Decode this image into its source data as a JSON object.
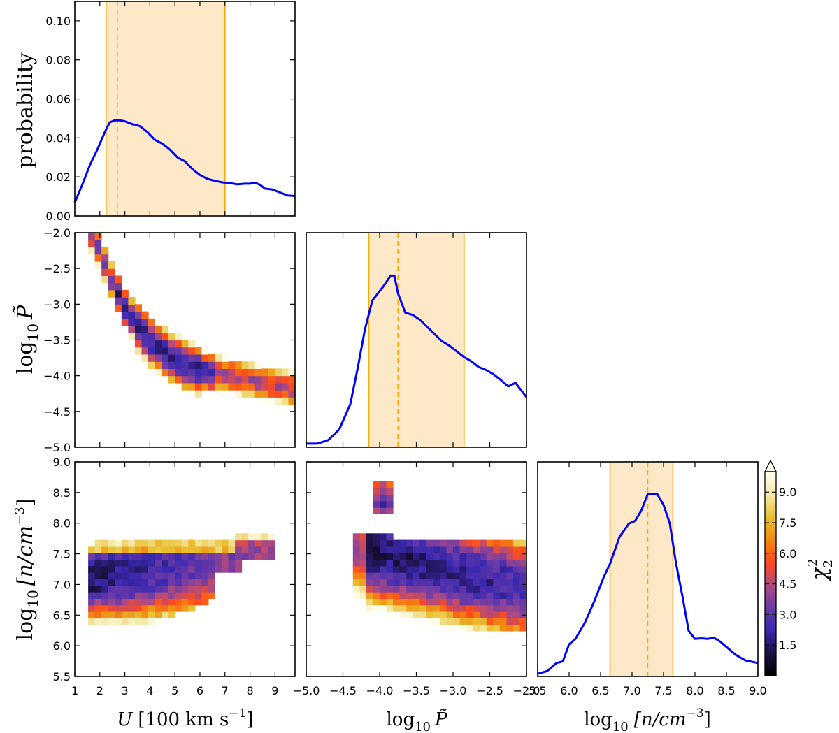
{
  "chart_data": [
    {
      "panel": "U marginal",
      "type": "line",
      "ylabel": "probability",
      "xlim": [
        1,
        9.8
      ],
      "ylim": [
        0,
        0.11
      ],
      "yticks": [
        "0.00",
        "0.02",
        "0.04",
        "0.06",
        "0.08",
        "0.10"
      ],
      "x": [
        1.0,
        1.3,
        1.6,
        1.9,
        2.2,
        2.4,
        2.6,
        2.8,
        3.0,
        3.3,
        3.6,
        3.9,
        4.2,
        4.5,
        4.8,
        5.1,
        5.4,
        5.7,
        6.0,
        6.3,
        6.6,
        6.9,
        7.2,
        7.5,
        7.8,
        8.0,
        8.2,
        8.4,
        8.6,
        8.9,
        9.2,
        9.5,
        9.8
      ],
      "y": [
        0.007,
        0.016,
        0.026,
        0.034,
        0.043,
        0.048,
        0.049,
        0.049,
        0.0485,
        0.047,
        0.046,
        0.043,
        0.039,
        0.037,
        0.034,
        0.03,
        0.028,
        0.024,
        0.021,
        0.019,
        0.018,
        0.0172,
        0.0168,
        0.0162,
        0.0165,
        0.0165,
        0.017,
        0.016,
        0.014,
        0.0135,
        0.012,
        0.0105,
        0.0102
      ],
      "interval": [
        2.25,
        7.0
      ],
      "peak": 2.7,
      "series_color": "#0000ff",
      "band_color": "#ffa500"
    },
    {
      "panel": "P marginal",
      "type": "line",
      "xlim": [
        -5,
        -2
      ],
      "x": [
        -5.0,
        -4.85,
        -4.7,
        -4.55,
        -4.4,
        -4.3,
        -4.2,
        -4.1,
        -3.95,
        -3.85,
        -3.8,
        -3.75,
        -3.65,
        -3.55,
        -3.45,
        -3.35,
        -3.25,
        -3.15,
        -3.05,
        -2.95,
        -2.85,
        -2.75,
        -2.65,
        -2.55,
        -2.45,
        -2.35,
        -2.25,
        -2.15,
        -2.0
      ],
      "y": [
        0.005,
        0.005,
        0.01,
        0.025,
        0.06,
        0.11,
        0.165,
        0.205,
        0.225,
        0.24,
        0.24,
        0.215,
        0.188,
        0.185,
        0.178,
        0.168,
        0.158,
        0.148,
        0.142,
        0.134,
        0.126,
        0.12,
        0.112,
        0.108,
        0.102,
        0.094,
        0.085,
        0.09,
        0.07
      ],
      "interval": [
        -4.15,
        -2.85
      ],
      "peak": -3.75,
      "series_color": "#0000ff",
      "band_color": "#ffa500"
    },
    {
      "panel": "n marginal",
      "type": "line",
      "xlim": [
        5.5,
        9.0
      ],
      "xticks": [
        "5.5",
        "6.0",
        "6.5",
        "7.0",
        "7.5",
        "8.0",
        "8.5",
        "9.0"
      ],
      "x": [
        5.5,
        5.65,
        5.8,
        5.9,
        6.0,
        6.1,
        6.25,
        6.4,
        6.55,
        6.65,
        6.8,
        6.95,
        7.05,
        7.15,
        7.25,
        7.4,
        7.5,
        7.6,
        7.7,
        7.8,
        7.9,
        8.0,
        8.1,
        8.2,
        8.3,
        8.4,
        8.5,
        8.65,
        8.8,
        9.0
      ],
      "y": [
        0.005,
        0.01,
        0.025,
        0.028,
        0.06,
        0.07,
        0.1,
        0.14,
        0.185,
        0.21,
        0.26,
        0.285,
        0.29,
        0.31,
        0.34,
        0.34,
        0.32,
        0.285,
        0.21,
        0.15,
        0.085,
        0.07,
        0.071,
        0.07,
        0.072,
        0.065,
        0.055,
        0.04,
        0.03,
        0.025
      ],
      "interval": [
        6.65,
        7.65
      ],
      "peak": 7.25,
      "series_color": "#0000ff",
      "band_color": "#ffa500"
    },
    {
      "panel": "U vs log P",
      "type": "heatmap",
      "ylabel_base": "log",
      "ylabel_sub": "10",
      "ylabel_sym": "P̃",
      "xlim": [
        1,
        9.8
      ],
      "ylim": [
        -5,
        -2
      ],
      "yticks": [
        "−5.0",
        "−4.5",
        "−4.0",
        "−3.5",
        "−3.0",
        "−2.5",
        "−2.0"
      ],
      "ridge_x": [
        1.6,
        2.0,
        2.5,
        3.0,
        3.5,
        4.0,
        4.5,
        5.0,
        5.5,
        6.0,
        6.5,
        7.0,
        7.5,
        8.0,
        8.5,
        9.0,
        9.5,
        9.8
      ],
      "ridge_y": [
        -1.95,
        -2.25,
        -2.7,
        -3.05,
        -3.3,
        -3.5,
        -3.65,
        -3.78,
        -3.86,
        -3.92,
        -3.95,
        -3.98,
        -4.02,
        -4.05,
        -4.1,
        -4.12,
        -4.15,
        -4.2
      ],
      "chi2_min": 0.5
    },
    {
      "panel": "U vs log n",
      "type": "heatmap",
      "ylabel_base": "log",
      "ylabel_sub": "10",
      "ylabel_sym": "[n/cm",
      "ylabel_sup": "−3",
      "ylabel_end": "]",
      "xlim": [
        1,
        9.8
      ],
      "ylim": [
        5.5,
        9.0
      ],
      "xticks": [
        "1",
        "2",
        "3",
        "4",
        "5",
        "6",
        "7",
        "8",
        "9"
      ],
      "yticks": [
        "5.5",
        "6.0",
        "6.5",
        "7.0",
        "7.5",
        "8.0",
        "8.5",
        "9.0"
      ],
      "xlabel_sym": "U",
      "xlabel_text": "[100 km s",
      "xlabel_sup": "−1",
      "xlabel_end": "]",
      "chi2_min": 0.3
    },
    {
      "panel": "log P vs log n",
      "type": "heatmap",
      "xlim": [
        -5,
        -2
      ],
      "ylim": [
        5.5,
        9.0
      ],
      "xticks": [
        "−5.0",
        "−4.5",
        "−4.0",
        "−3.5",
        "−3.0",
        "−2.5",
        "−2.0"
      ],
      "xlabel_base": "log",
      "xlabel_sub": "10",
      "xlabel_sym": "P̃",
      "n_xlabel_base": "log",
      "n_xlabel_sub": "10",
      "n_xlabel_text": "[n/cm",
      "n_xlabel_sup": "−3",
      "n_xlabel_end": "]",
      "chi2_min": 0.3
    },
    {
      "panel": "colorbar",
      "type": "colorbar",
      "label": "χ",
      "label_sub": "2",
      "label_sup": "2",
      "range": [
        0,
        10
      ],
      "ticks": [
        "1.5",
        "3.0",
        "4.5",
        "6.0",
        "7.5",
        "9.0"
      ],
      "colormap": [
        "#000000",
        "#1c1040",
        "#3a28b0",
        "#6a3aa8",
        "#b04a80",
        "#ff4a1c",
        "#f08a10",
        "#e8c030",
        "#f5e8a8",
        "#fffff0"
      ]
    }
  ]
}
